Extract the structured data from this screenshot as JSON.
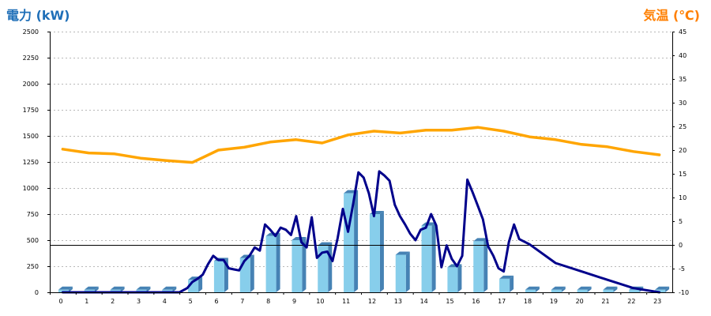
{
  "chart_data": {
    "type": "bar",
    "y_left_label": "電力 (kW)",
    "y_right_label": "気温 (℃)",
    "ylim_left": [
      0,
      2500
    ],
    "ylim_right": [
      -10,
      45
    ],
    "y_left_ticks": [
      0,
      250,
      500,
      750,
      1000,
      1250,
      1500,
      1750,
      2000,
      2250,
      2500
    ],
    "y_right_ticks": [
      -10,
      -5,
      0,
      5,
      10,
      15,
      20,
      25,
      30,
      35,
      40,
      45
    ],
    "categories": [
      "0",
      "1",
      "2",
      "3",
      "4",
      "5",
      "6",
      "7",
      "8",
      "9",
      "10",
      "11",
      "12",
      "13",
      "14",
      "15",
      "16",
      "17",
      "18",
      "19",
      "20",
      "21",
      "22",
      "23"
    ],
    "grid": "horizontal-dotted",
    "series": [
      {
        "kind": "bar",
        "axis": "left",
        "values": [
          25,
          25,
          25,
          25,
          25,
          120,
          300,
          330,
          540,
          500,
          450,
          950,
          750,
          360,
          640,
          240,
          490,
          130,
          25,
          25,
          25,
          25,
          25,
          25
        ]
      },
      {
        "kind": "line",
        "axis": "left",
        "x": [
          0,
          1,
          2,
          3,
          4,
          4.5,
          4.8,
          5.0,
          5.2,
          5.4,
          5.6,
          5.8,
          6.0,
          6.2,
          6.4,
          6.6,
          6.8,
          7.0,
          7.2,
          7.4,
          7.6,
          7.8,
          8.0,
          8.2,
          8.4,
          8.6,
          8.8,
          9.0,
          9.2,
          9.4,
          9.6,
          9.8,
          10.0,
          10.2,
          10.4,
          10.6,
          10.8,
          11.0,
          11.2,
          11.4,
          11.6,
          11.8,
          12.0,
          12.2,
          12.4,
          12.6,
          12.8,
          13.0,
          13.2,
          13.4,
          13.6,
          13.8,
          14.0,
          14.2,
          14.4,
          14.6,
          14.8,
          15.0,
          15.2,
          15.4,
          15.6,
          15.8,
          16.0,
          16.2,
          16.4,
          16.6,
          16.8,
          17.0,
          17.2,
          17.4,
          17.6,
          18,
          19,
          20,
          21,
          22,
          23
        ],
        "values": [
          0,
          0,
          0,
          0,
          0,
          0,
          40,
          100,
          130,
          170,
          270,
          350,
          310,
          310,
          230,
          220,
          210,
          300,
          350,
          430,
          400,
          650,
          600,
          540,
          620,
          600,
          550,
          730,
          480,
          430,
          720,
          330,
          380,
          390,
          300,
          520,
          800,
          580,
          850,
          1150,
          1100,
          950,
          730,
          1160,
          1120,
          1070,
          840,
          730,
          650,
          560,
          500,
          600,
          620,
          750,
          640,
          240,
          450,
          320,
          250,
          350,
          1080,
          960,
          830,
          700,
          440,
          350,
          230,
          200,
          480,
          650,
          510,
          460,
          280,
          200,
          120,
          40,
          0
        ],
        "color": "#00008b"
      },
      {
        "kind": "line",
        "axis": "right",
        "x": [
          0,
          1,
          2,
          3,
          4,
          5,
          6,
          7,
          8,
          9,
          10,
          11,
          12,
          13,
          14,
          15,
          16,
          17,
          18,
          19,
          20,
          21,
          22,
          23
        ],
        "values": [
          20.2,
          19.4,
          19.2,
          18.3,
          17.8,
          17.4,
          20.0,
          20.6,
          21.7,
          22.2,
          21.5,
          23.2,
          24.0,
          23.6,
          24.2,
          24.2,
          24.8,
          24.0,
          22.8,
          22.2,
          21.2,
          20.7,
          19.7,
          19.0
        ],
        "color": "#ffa500"
      }
    ],
    "colors": {
      "bar_face": "#87ceeb",
      "bar_side": "#4682b4",
      "left_axis_title": "#1f6fb8",
      "right_axis_title": "#ff7f00",
      "power_line": "#00008b",
      "temp_line": "#ffa500"
    }
  }
}
